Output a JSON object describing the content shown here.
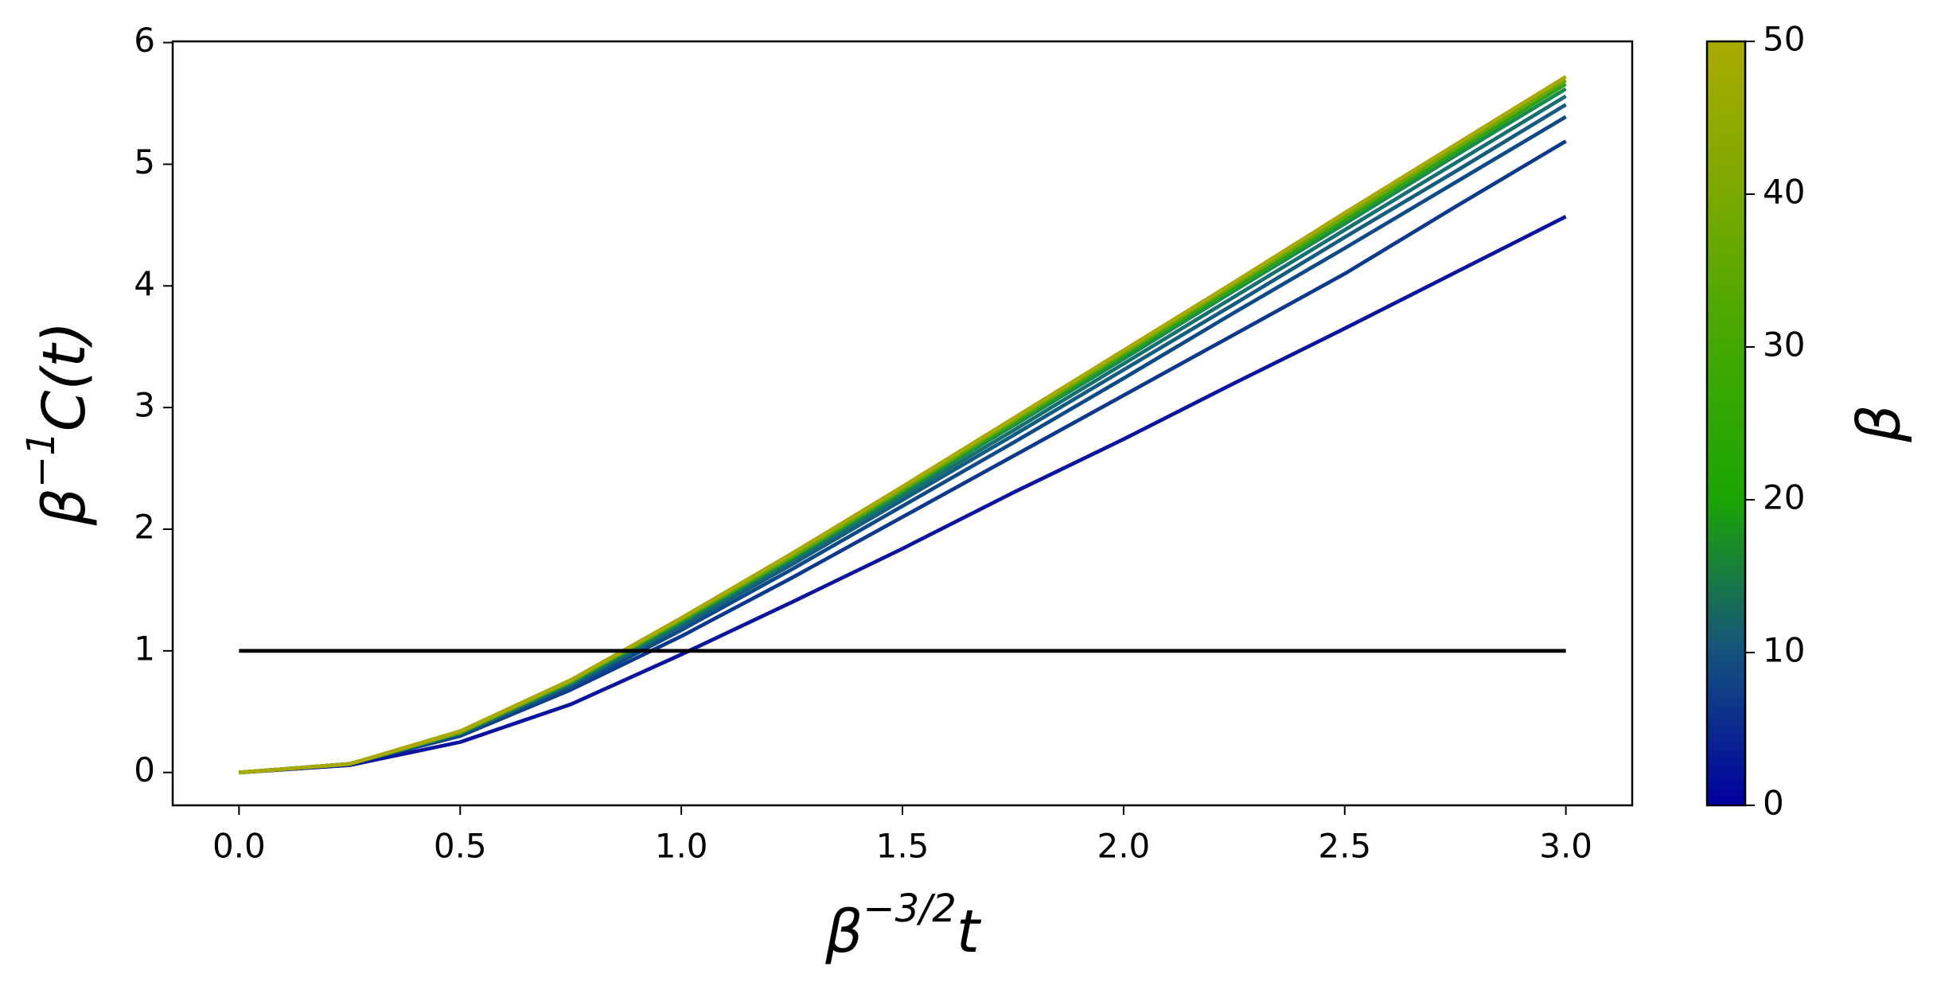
{
  "chart_data": {
    "type": "line",
    "xlabel": {
      "base": "β",
      "sup": "−3/2",
      "rest": "t"
    },
    "ylabel": {
      "base": "β",
      "sup": "−1",
      "rest": "C(t)"
    },
    "x": [
      0,
      0.25,
      0.5,
      0.75,
      1.0,
      1.25,
      1.5,
      1.75,
      2.0,
      2.25,
      2.5,
      2.75,
      3.0
    ],
    "series": [
      {
        "color": "#0a14a0",
        "values": [
          0,
          0.06,
          0.25,
          0.56,
          0.97,
          1.4,
          1.84,
          2.3,
          2.74,
          3.2,
          3.65,
          4.11,
          4.57
        ]
      },
      {
        "color": "#0c3890",
        "values": [
          0,
          0.07,
          0.3,
          0.68,
          1.12,
          1.6,
          2.1,
          2.6,
          3.1,
          3.6,
          4.1,
          4.65,
          5.19
        ]
      },
      {
        "color": "#0e4a88",
        "values": [
          0,
          0.07,
          0.31,
          0.7,
          1.17,
          1.67,
          2.19,
          2.71,
          3.24,
          3.78,
          4.31,
          4.85,
          5.39
        ]
      },
      {
        "color": "#145c80",
        "values": [
          0,
          0.07,
          0.32,
          0.72,
          1.2,
          1.71,
          2.24,
          2.77,
          3.31,
          3.85,
          4.4,
          4.94,
          5.49
        ]
      },
      {
        "color": "#177070",
        "values": [
          0,
          0.07,
          0.32,
          0.73,
          1.22,
          1.74,
          2.27,
          2.81,
          3.36,
          3.91,
          4.46,
          5.01,
          5.56
        ]
      },
      {
        "color": "#1a8a50",
        "values": [
          0,
          0.07,
          0.33,
          0.74,
          1.24,
          1.76,
          2.3,
          2.85,
          3.4,
          3.96,
          4.51,
          5.07,
          5.62
        ]
      },
      {
        "color": "#2aa21a",
        "values": [
          0,
          0.07,
          0.33,
          0.75,
          1.25,
          1.77,
          2.32,
          2.87,
          3.43,
          3.98,
          4.54,
          5.1,
          5.66
        ]
      },
      {
        "color": "#6aa800",
        "values": [
          0,
          0.07,
          0.33,
          0.75,
          1.26,
          1.78,
          2.33,
          2.89,
          3.45,
          4.01,
          4.57,
          5.13,
          5.69
        ]
      },
      {
        "color": "#a8aa00",
        "values": [
          0,
          0.07,
          0.34,
          0.76,
          1.27,
          1.8,
          2.35,
          2.91,
          3.47,
          4.03,
          4.6,
          5.16,
          5.72
        ]
      },
      {
        "color": "#000000",
        "values": [
          1,
          1,
          1,
          1,
          1,
          1,
          1,
          1,
          1,
          1,
          1,
          1,
          1
        ]
      }
    ],
    "xlim": [
      -0.15,
      3.15
    ],
    "xticks": [
      {
        "value": 0,
        "label": "0.0"
      },
      {
        "value": 0.5,
        "label": "0.5"
      },
      {
        "value": 1,
        "label": "1.0"
      },
      {
        "value": 1.5,
        "label": "1.5"
      },
      {
        "value": 2,
        "label": "2.0"
      },
      {
        "value": 2.5,
        "label": "2.5"
      },
      {
        "value": 3,
        "label": "3.0"
      }
    ],
    "ylim": [
      -0.27,
      6.01
    ],
    "yticks": [
      0,
      1,
      2,
      3,
      4,
      5,
      6
    ],
    "colorbar": {
      "label": "β",
      "lim": [
        0,
        50
      ],
      "ticks": [
        0,
        10,
        20,
        30,
        40,
        50
      ],
      "colors": [
        "#00009e",
        "#15527e",
        "#1aa504",
        "#42a800",
        "#7aa900",
        "#aaaa00"
      ]
    }
  }
}
